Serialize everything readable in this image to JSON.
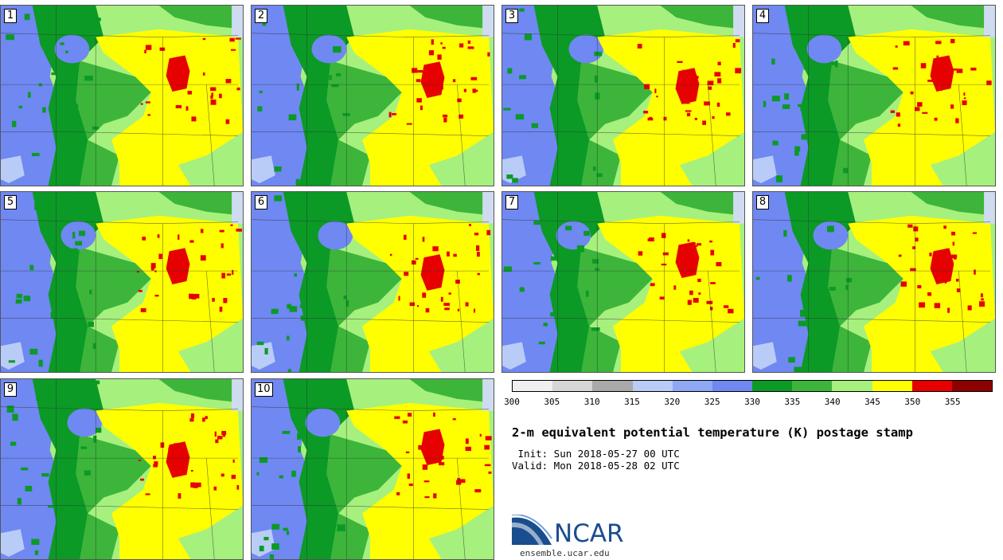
{
  "header": {
    "title": "2-m equivalent potential temperature (K) postage stamp",
    "init": " Init: Sun 2018-05-27 00 UTC",
    "valid": "Valid: Mon 2018-05-28 02 UTC"
  },
  "members": [
    "1",
    "2",
    "3",
    "4",
    "5",
    "6",
    "7",
    "8",
    "9",
    "10"
  ],
  "colorbar": {
    "ticks": [
      "300",
      "305",
      "310",
      "315",
      "320",
      "325",
      "330",
      "335",
      "340",
      "345",
      "350",
      "355"
    ],
    "colors": [
      "#f0f0f0",
      "#d6d6d6",
      "#a9a9a9",
      "#b9ccf7",
      "#8ea8f5",
      "#6f88f2",
      "#0b9a25",
      "#3cb53a",
      "#a6f07e",
      "#ffff00",
      "#e60000",
      "#8c0000"
    ]
  },
  "palette": {
    "water": "#6f88f2",
    "snow": "#b9ccf7",
    "dark_green": "#0b9a25",
    "green": "#3cb53a",
    "light_green": "#a6f07e",
    "yellow": "#ffff00",
    "red": "#e60000",
    "lake": "#cfdcf0"
  },
  "logo": {
    "name": "NCAR",
    "url": "ensemble.ucar.edu"
  }
}
